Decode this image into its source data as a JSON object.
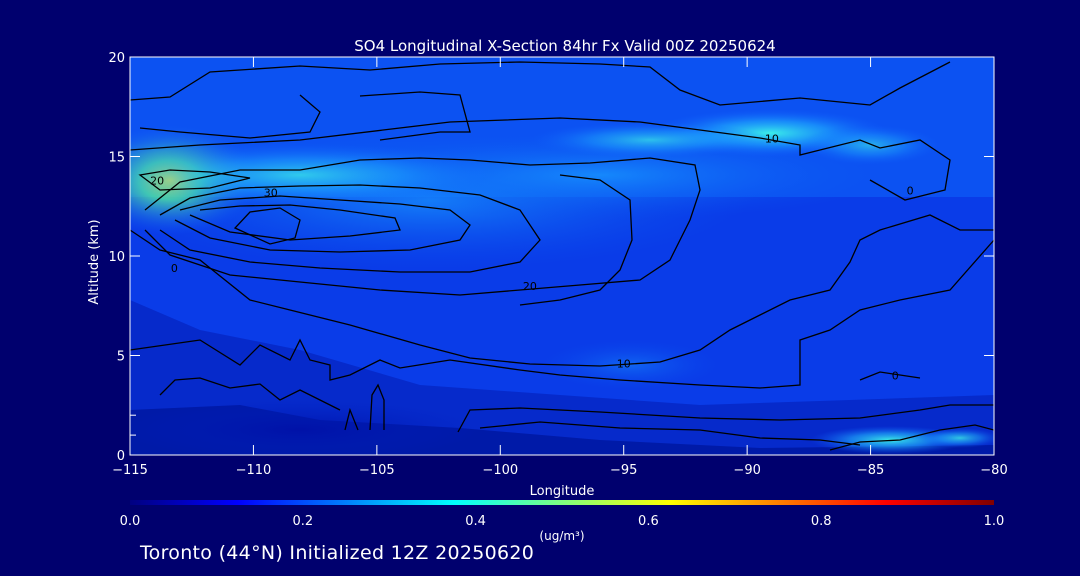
{
  "chart_data": {
    "type": "contour",
    "title": "SO4 Longitudinal X-Section 84hr  Fx Valid 00Z 20250624",
    "xlabel": "Longitude",
    "ylabel": "Altitude (km)",
    "xlim": [
      -115,
      -80
    ],
    "ylim": [
      0,
      20
    ],
    "xticks": [
      -115,
      -110,
      -105,
      -100,
      -95,
      -90,
      -85,
      -80
    ],
    "xtick_labels": [
      "−115",
      "−110",
      "−105",
      "−100",
      "−95",
      "−90",
      "−85",
      "−80"
    ],
    "yticks": [
      0,
      5,
      10,
      15,
      20
    ],
    "ytick_labels": [
      "0",
      "5",
      "10",
      "15",
      "20"
    ],
    "colorbar": {
      "label": "(ug/m³)",
      "range": [
        0.0,
        1.0
      ],
      "ticks": [
        0.0,
        0.2,
        0.4,
        0.6,
        0.8,
        1.0
      ],
      "tick_labels": [
        "0.0",
        "0.2",
        "0.4",
        "0.6",
        "0.8",
        "1.0"
      ],
      "colors": [
        "#000080",
        "#0000ff",
        "#0080ff",
        "#00ffff",
        "#80ff80",
        "#ffff00",
        "#ff8000",
        "#ff0000",
        "#800000"
      ]
    },
    "contour_labels": [
      {
        "text": "10",
        "lon": -89.0,
        "alt": 15.9
      },
      {
        "text": "0",
        "lon": -83.4,
        "alt": 13.3
      },
      {
        "text": "20",
        "lon": -113.9,
        "alt": 13.8
      },
      {
        "text": "30",
        "lon": -109.3,
        "alt": 13.2
      },
      {
        "text": "0",
        "lon": -113.2,
        "alt": 9.4
      },
      {
        "text": "20",
        "lon": -98.8,
        "alt": 8.5
      },
      {
        "text": "10",
        "lon": -95.0,
        "alt": 4.6
      },
      {
        "text": "0",
        "lon": -84.0,
        "alt": 4.0
      }
    ]
  },
  "footer": "Toronto (44°N) Initialized 12Z 20250620"
}
